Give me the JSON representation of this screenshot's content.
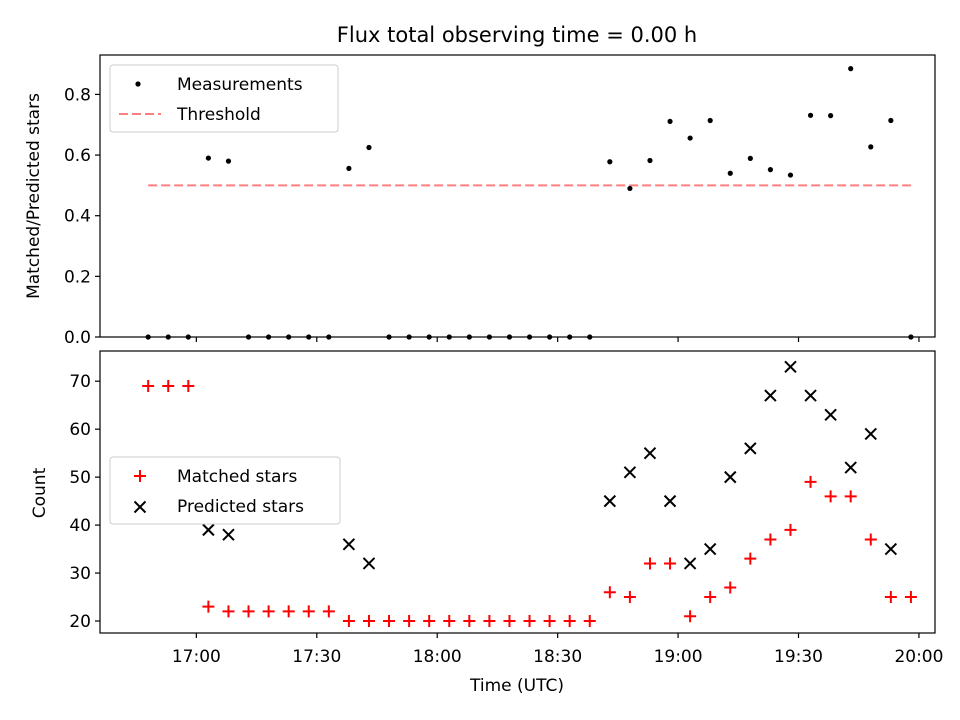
{
  "chart_data": [
    {
      "type": "scatter",
      "title": "Flux total observing time = 0.00 h",
      "ylabel": "Matched/Predicted stars",
      "ylim": [
        0,
        0.93
      ],
      "yticks": [
        0.0,
        0.2,
        0.4,
        0.6,
        0.8
      ],
      "ytick_labels": [
        "0.0",
        "0.2",
        "0.4",
        "0.6",
        "0.8"
      ],
      "legend_position": "upper-left",
      "series": [
        {
          "name": "Measurements",
          "marker": "dot",
          "color": "#000000",
          "points": [
            [
              "16:48",
              0
            ],
            [
              "16:53",
              0
            ],
            [
              "16:58",
              0
            ],
            [
              "17:03",
              0.59
            ],
            [
              "17:08",
              0.58
            ],
            [
              "17:13",
              0
            ],
            [
              "17:18",
              0
            ],
            [
              "17:23",
              0
            ],
            [
              "17:28",
              0
            ],
            [
              "17:33",
              0
            ],
            [
              "17:38",
              0.556
            ],
            [
              "17:43",
              0.625
            ],
            [
              "17:48",
              0
            ],
            [
              "17:53",
              0
            ],
            [
              "17:58",
              0
            ],
            [
              "18:03",
              0
            ],
            [
              "18:08",
              0
            ],
            [
              "18:13",
              0
            ],
            [
              "18:18",
              0
            ],
            [
              "18:23",
              0
            ],
            [
              "18:28",
              0
            ],
            [
              "18:33",
              0
            ],
            [
              "18:38",
              0
            ],
            [
              "18:43",
              0.578
            ],
            [
              "18:48",
              0.49
            ],
            [
              "18:53",
              0.582
            ],
            [
              "18:58",
              0.711
            ],
            [
              "19:03",
              0.656
            ],
            [
              "19:08",
              0.714
            ],
            [
              "19:13",
              0.54
            ],
            [
              "19:18",
              0.589
            ],
            [
              "19:23",
              0.552
            ],
            [
              "19:28",
              0.534
            ],
            [
              "19:33",
              0.731
            ],
            [
              "19:38",
              0.73
            ],
            [
              "19:43",
              0.885
            ],
            [
              "19:48",
              0.627
            ],
            [
              "19:53",
              0.714
            ],
            [
              "19:58",
              0
            ]
          ]
        },
        {
          "name": "Threshold",
          "style": "dashed-line",
          "color": "#ff7f7f",
          "x": [
            "16:48",
            "19:58"
          ],
          "y": [
            0.5,
            0.5
          ]
        }
      ]
    },
    {
      "type": "scatter",
      "xlabel": "Time (UTC)",
      "ylabel": "Count",
      "ylim": [
        17.5,
        76.3
      ],
      "yticks": [
        20,
        30,
        40,
        50,
        60,
        70
      ],
      "ytick_labels": [
        "20",
        "30",
        "40",
        "50",
        "60",
        "70"
      ],
      "xticks": [
        "17:00",
        "17:30",
        "18:00",
        "18:30",
        "19:00",
        "19:30",
        "20:00"
      ],
      "xlim": [
        "16:36",
        "20:04"
      ],
      "legend_position": "center-left",
      "series": [
        {
          "name": "Matched stars",
          "marker": "plus",
          "color": "#ff0000",
          "points": [
            [
              "16:48",
              69
            ],
            [
              "16:53",
              69
            ],
            [
              "16:58",
              69
            ],
            [
              "17:03",
              23
            ],
            [
              "17:08",
              22
            ],
            [
              "17:13",
              22
            ],
            [
              "17:18",
              22
            ],
            [
              "17:23",
              22
            ],
            [
              "17:28",
              22
            ],
            [
              "17:33",
              22
            ],
            [
              "17:38",
              20
            ],
            [
              "17:43",
              20
            ],
            [
              "17:48",
              20
            ],
            [
              "17:53",
              20
            ],
            [
              "17:58",
              20
            ],
            [
              "18:03",
              20
            ],
            [
              "18:08",
              20
            ],
            [
              "18:13",
              20
            ],
            [
              "18:18",
              20
            ],
            [
              "18:23",
              20
            ],
            [
              "18:28",
              20
            ],
            [
              "18:33",
              20
            ],
            [
              "18:38",
              20
            ],
            [
              "18:43",
              26
            ],
            [
              "18:48",
              25
            ],
            [
              "18:53",
              32
            ],
            [
              "18:58",
              32
            ],
            [
              "19:03",
              21
            ],
            [
              "19:08",
              25
            ],
            [
              "19:13",
              27
            ],
            [
              "19:18",
              33
            ],
            [
              "19:23",
              37
            ],
            [
              "19:28",
              39
            ],
            [
              "19:33",
              49
            ],
            [
              "19:38",
              46
            ],
            [
              "19:43",
              46
            ],
            [
              "19:48",
              37
            ],
            [
              "19:53",
              25
            ],
            [
              "19:58",
              25
            ]
          ]
        },
        {
          "name": "Predicted stars",
          "marker": "x",
          "color": "#000000",
          "points": [
            [
              "17:03",
              39
            ],
            [
              "17:08",
              38
            ],
            [
              "17:38",
              36
            ],
            [
              "17:43",
              32
            ],
            [
              "18:43",
              45
            ],
            [
              "18:48",
              51
            ],
            [
              "18:53",
              55
            ],
            [
              "18:58",
              45
            ],
            [
              "19:03",
              32
            ],
            [
              "19:08",
              35
            ],
            [
              "19:13",
              50
            ],
            [
              "19:18",
              56
            ],
            [
              "19:23",
              67
            ],
            [
              "19:28",
              73
            ],
            [
              "19:33",
              67
            ],
            [
              "19:38",
              63
            ],
            [
              "19:43",
              52
            ],
            [
              "19:48",
              59
            ],
            [
              "19:53",
              35
            ]
          ]
        }
      ]
    }
  ]
}
